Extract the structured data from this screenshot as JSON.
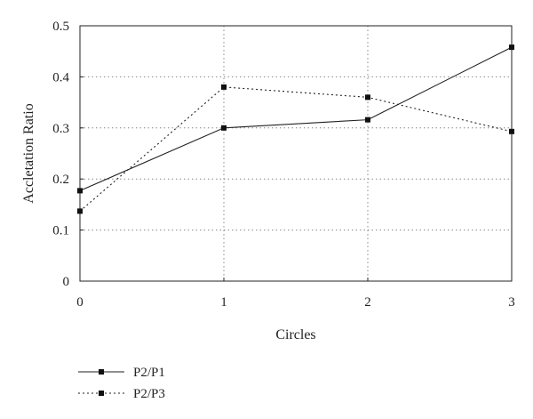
{
  "chart_data": {
    "type": "line",
    "x": [
      0,
      1,
      2,
      3
    ],
    "xlabel": "Circles",
    "ylabel": "Accletation Ratio",
    "xlim": [
      0,
      3
    ],
    "ylim": [
      0,
      0.5
    ],
    "xticks": [
      "0",
      "1",
      "2",
      "3"
    ],
    "yticks": [
      "0",
      "0.1",
      "0.2",
      "0.3",
      "0.4",
      "0.5"
    ],
    "grid": "dotted",
    "legend_position": "bottom-left",
    "series": [
      {
        "name": "P2/P1",
        "values": [
          0.177,
          0.3,
          0.316,
          0.458
        ],
        "line_style": "solid",
        "marker": "square"
      },
      {
        "name": "P2/P3",
        "values": [
          0.137,
          0.38,
          0.36,
          0.293
        ],
        "line_style": "dotted",
        "marker": "square"
      }
    ]
  }
}
